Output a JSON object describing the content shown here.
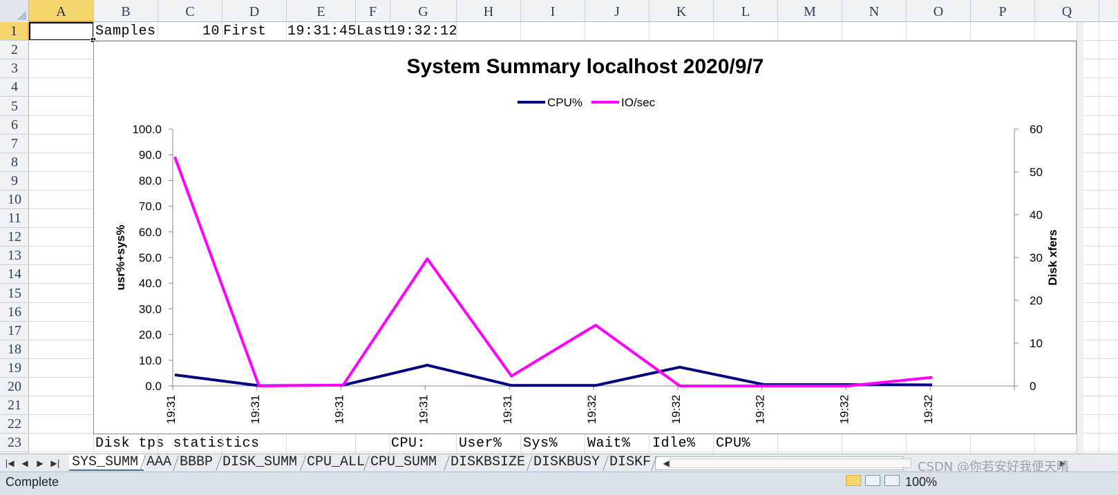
{
  "spreadsheet": {
    "columns": [
      "A",
      "B",
      "C",
      "D",
      "E",
      "F",
      "G",
      "H",
      "I",
      "J",
      "K",
      "L",
      "M",
      "N",
      "O",
      "P",
      "Q"
    ],
    "rows": [
      "1",
      "2",
      "3",
      "4",
      "5",
      "6",
      "7",
      "8",
      "9",
      "10",
      "11",
      "12",
      "13",
      "14",
      "15",
      "16",
      "17",
      "18",
      "19",
      "20",
      "21",
      "22",
      "23"
    ],
    "active_column": "A",
    "active_row": "1",
    "row1": {
      "b": "Samples",
      "c": "10",
      "d": "First",
      "e": "19:31:45",
      "f": "Last",
      "g": "19:32:12"
    },
    "row23": {
      "b": "Disk tps statistics",
      "g": "CPU:",
      "h": "User%",
      "i": "Sys%",
      "j": "Wait%",
      "k": "Idle%",
      "l": "CPU%"
    }
  },
  "chart_data": {
    "type": "line",
    "title": "System Summary localhost  2020/9/7",
    "categories": [
      "19:31",
      "19:31",
      "19:31",
      "19:31",
      "19:31",
      "19:32",
      "19:32",
      "19:32",
      "19:32",
      "19:32"
    ],
    "series": [
      {
        "name": "CPU%",
        "axis": "left",
        "color": "#000080",
        "values": [
          4.3,
          0.1,
          0.3,
          8.1,
          0.2,
          0.2,
          7.3,
          0.5,
          0.5,
          0.4
        ]
      },
      {
        "name": "IO/sec",
        "axis": "right",
        "color": "#ff00ff",
        "values": [
          53.5,
          0,
          0.2,
          29.7,
          2.3,
          14.2,
          0,
          0,
          0,
          2.0
        ]
      }
    ],
    "ylabel": "usr%+sys%",
    "y2label": "Disk xfers",
    "ylim": [
      0,
      100
    ],
    "y2lim": [
      0,
      60
    ],
    "yticks": [
      "0.0",
      "10.0",
      "20.0",
      "30.0",
      "40.0",
      "50.0",
      "60.0",
      "70.0",
      "80.0",
      "90.0",
      "100.0"
    ],
    "y2ticks": [
      "0",
      "10",
      "20",
      "30",
      "40",
      "50",
      "60"
    ],
    "legend_position": "top",
    "grid": false
  },
  "sheet_tabs": [
    "SYS_SUMM",
    "AAA",
    "BBBP",
    "DISK_SUMM",
    "CPU_ALL",
    "CPU_SUMM",
    "DISKBSIZE",
    "DISKBUSY",
    "DISKF"
  ],
  "active_tab": "SYS_SUMM",
  "watermark": "CSDN @你若安好我便天晴",
  "status": {
    "text": "Complete",
    "zoom": "100%"
  },
  "icons": {
    "first_sheet": "first-sheet-icon",
    "prev_sheet": "prev-sheet-icon",
    "next_sheet": "next-sheet-icon",
    "last_sheet": "last-sheet-icon"
  }
}
